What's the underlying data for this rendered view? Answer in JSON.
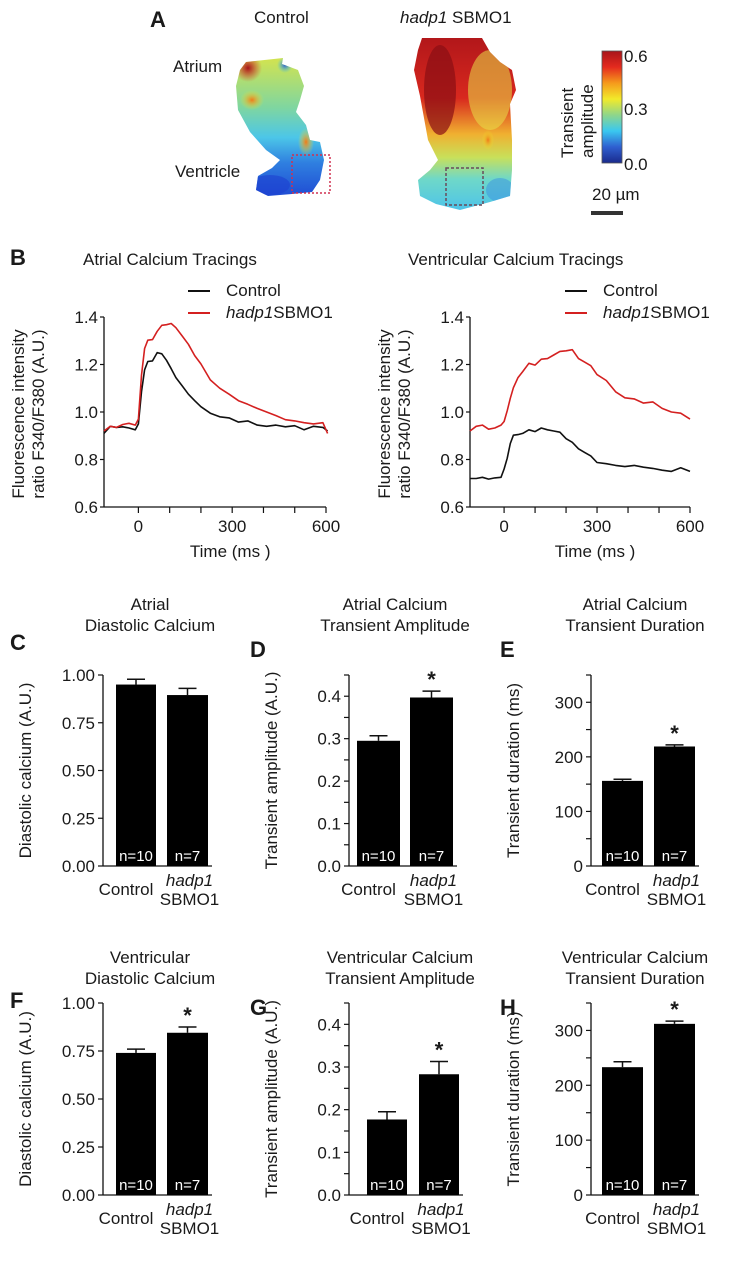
{
  "panel_a": {
    "letter": "A",
    "control_label": "Control",
    "treated_label_italic": "hadp1",
    "treated_label_rest": " SBMO1",
    "atrium_label": "Atrium",
    "ventricle_label": "Ventricle",
    "colorbar": {
      "label_line1": "Transient",
      "label_line2": "amplitude",
      "max": "0.6",
      "mid": "0.3",
      "min": "0.0",
      "colors": [
        "#1a2a8c",
        "#2f5fd0",
        "#3ac8f0",
        "#8fd68a",
        "#f2ea2a",
        "#f59a1c",
        "#e42a1e",
        "#a8141a"
      ]
    },
    "scale_bar_label": "20 µm"
  },
  "chart_data": [
    {
      "id": "B-left",
      "letter": "B",
      "type": "line",
      "title": "Atrial Calcium Tracings",
      "xlabel": "Time (ms )",
      "ylabel_line1": "Fluorescence intensity",
      "ylabel_line2": "ratio F340/F380 (A.U.)",
      "xlim": [
        -110,
        600
      ],
      "ylim": [
        0.6,
        1.4
      ],
      "xticks": [
        0,
        100,
        200,
        300,
        400,
        500,
        600
      ],
      "xticklabels": [
        "0",
        "",
        "",
        "300",
        "",
        "",
        "600"
      ],
      "yticks": [
        0.6,
        0.8,
        1.0,
        1.2,
        1.4
      ],
      "yticklabels": [
        "0.6",
        "0.8",
        "1.0",
        "1.2",
        "1.4"
      ],
      "legend": "top-right",
      "series": [
        {
          "name": "Control",
          "color": "#111111",
          "x": [
            -110,
            -90,
            -70,
            -50,
            -30,
            -10,
            0,
            10,
            20,
            30,
            45,
            60,
            75,
            90,
            105,
            120,
            140,
            160,
            180,
            200,
            230,
            260,
            290,
            320,
            350,
            380,
            410,
            440,
            470,
            500,
            530,
            560,
            590,
            605
          ],
          "y": [
            0.91,
            0.94,
            0.93,
            0.94,
            0.93,
            0.93,
            0.95,
            1.08,
            1.18,
            1.21,
            1.22,
            1.25,
            1.24,
            1.22,
            1.18,
            1.15,
            1.11,
            1.07,
            1.05,
            1.02,
            1.0,
            0.98,
            0.97,
            0.96,
            0.96,
            0.95,
            0.94,
            0.94,
            0.94,
            0.94,
            0.93,
            0.94,
            0.93,
            0.92
          ]
        },
        {
          "name": "hadp1SBMO1",
          "color": "#d42020",
          "x": [
            -110,
            -90,
            -70,
            -50,
            -30,
            -10,
            0,
            10,
            20,
            30,
            45,
            60,
            75,
            90,
            105,
            120,
            140,
            160,
            180,
            200,
            230,
            260,
            290,
            320,
            350,
            380,
            410,
            440,
            470,
            500,
            530,
            560,
            590,
            605
          ],
          "y": [
            0.92,
            0.94,
            0.93,
            0.95,
            0.95,
            0.95,
            0.97,
            1.15,
            1.27,
            1.3,
            1.31,
            1.34,
            1.36,
            1.37,
            1.37,
            1.36,
            1.32,
            1.28,
            1.24,
            1.2,
            1.14,
            1.1,
            1.07,
            1.05,
            1.03,
            1.02,
            1.0,
            0.98,
            0.97,
            0.96,
            0.96,
            0.95,
            0.95,
            0.91
          ]
        }
      ]
    },
    {
      "id": "B-right",
      "type": "line",
      "title": "Ventricular Calcium Tracings",
      "xlabel": "Time (ms )",
      "ylabel_line1": "Fluorescence intensity",
      "ylabel_line2": "ratio F340/F380 (A.U.)",
      "xlim": [
        -110,
        600
      ],
      "ylim": [
        0.6,
        1.4
      ],
      "xticks": [
        0,
        100,
        200,
        300,
        400,
        500,
        600
      ],
      "xticklabels": [
        "0",
        "",
        "",
        "300",
        "",
        "",
        "600"
      ],
      "yticks": [
        0.6,
        0.8,
        1.0,
        1.2,
        1.4
      ],
      "yticklabels": [
        "0.6",
        "0.8",
        "1.0",
        "1.2",
        "1.4"
      ],
      "legend": "top-right",
      "series": [
        {
          "name": "Control",
          "color": "#111111",
          "x": [
            -110,
            -90,
            -70,
            -50,
            -30,
            -10,
            0,
            10,
            20,
            30,
            45,
            60,
            80,
            100,
            120,
            140,
            160,
            180,
            200,
            220,
            240,
            260,
            280,
            300,
            330,
            360,
            390,
            420,
            450,
            480,
            510,
            540,
            570,
            600
          ],
          "y": [
            0.72,
            0.72,
            0.72,
            0.72,
            0.72,
            0.73,
            0.76,
            0.8,
            0.87,
            0.9,
            0.91,
            0.91,
            0.92,
            0.92,
            0.93,
            0.93,
            0.92,
            0.91,
            0.89,
            0.87,
            0.85,
            0.83,
            0.81,
            0.79,
            0.78,
            0.78,
            0.77,
            0.77,
            0.77,
            0.76,
            0.76,
            0.75,
            0.76,
            0.75
          ]
        },
        {
          "name": "hadp1SBMO1",
          "color": "#d42020",
          "x": [
            -110,
            -90,
            -70,
            -50,
            -30,
            -10,
            0,
            10,
            20,
            30,
            45,
            60,
            80,
            100,
            120,
            140,
            160,
            180,
            200,
            220,
            240,
            260,
            280,
            300,
            330,
            360,
            390,
            420,
            450,
            480,
            510,
            540,
            570,
            600
          ],
          "y": [
            0.92,
            0.94,
            0.94,
            0.93,
            0.93,
            0.95,
            0.96,
            1.0,
            1.06,
            1.1,
            1.15,
            1.17,
            1.2,
            1.2,
            1.22,
            1.23,
            1.24,
            1.25,
            1.26,
            1.26,
            1.23,
            1.21,
            1.19,
            1.16,
            1.13,
            1.09,
            1.06,
            1.05,
            1.04,
            1.04,
            1.02,
            1.0,
            0.99,
            0.97
          ]
        }
      ]
    },
    {
      "id": "C",
      "letter": "C",
      "type": "bar",
      "title_line1": "Atrial",
      "title_line2": "Diastolic Calcium",
      "ylabel": "Diastolic calcium (A.U.)",
      "categories": [
        "Control",
        "hadp1 SBMO1"
      ],
      "values": [
        0.95,
        0.895
      ],
      "errors": [
        0.028,
        0.035
      ],
      "n_labels": [
        "n=10",
        "n=7"
      ],
      "significance": [
        "",
        ""
      ],
      "ylim": [
        0,
        1.0
      ],
      "yticks": [
        0,
        0.25,
        0.5,
        0.75,
        1.0
      ],
      "yticklabels": [
        "0.00",
        "0.25",
        "0.50",
        "0.75",
        "1.00"
      ],
      "minor_ticks": []
    },
    {
      "id": "D",
      "letter": "D",
      "type": "bar",
      "title_line1": "Atrial Calcium",
      "title_line2": "Transient Amplitude",
      "ylabel": "Transient amplitude (A.U.)",
      "categories": [
        "Control",
        "hadp1 SBMO1"
      ],
      "values": [
        0.295,
        0.397
      ],
      "errors": [
        0.012,
        0.015
      ],
      "n_labels": [
        "n=10",
        "n=7"
      ],
      "significance": [
        "",
        "*"
      ],
      "ylim": [
        0,
        0.45
      ],
      "yticks": [
        0,
        0.1,
        0.2,
        0.3,
        0.4
      ],
      "yticklabels": [
        "0.0",
        "0.1",
        "0.2",
        "0.3",
        "0.4"
      ],
      "minor_ticks": [
        0.05,
        0.15,
        0.25,
        0.35,
        0.45
      ]
    },
    {
      "id": "E",
      "letter": "E",
      "type": "bar",
      "title_line1": "Atrial Calcium",
      "title_line2": "Transient Duration",
      "ylabel": "Transient duration (ms)",
      "categories": [
        "Control",
        "hadp1 SBMO1"
      ],
      "values": [
        156,
        219
      ],
      "errors": [
        3,
        3
      ],
      "n_labels": [
        "n=10",
        "n=7"
      ],
      "significance": [
        "",
        "*"
      ],
      "ylim": [
        0,
        350
      ],
      "yticks": [
        0,
        100,
        200,
        300
      ],
      "yticklabels": [
        "0",
        "100",
        "200",
        "300"
      ],
      "minor_ticks": [
        50,
        150,
        250,
        350
      ]
    },
    {
      "id": "F",
      "letter": "F",
      "type": "bar",
      "title_line1": "Ventricular",
      "title_line2": "Diastolic Calcium",
      "ylabel": "Diastolic calcium (A.U.)",
      "categories": [
        "Control",
        "hadp1 SBMO1"
      ],
      "values": [
        0.74,
        0.845
      ],
      "errors": [
        0.02,
        0.03
      ],
      "n_labels": [
        "n=10",
        "n=7"
      ],
      "significance": [
        "",
        "*"
      ],
      "ylim": [
        0,
        1.0
      ],
      "yticks": [
        0,
        0.25,
        0.5,
        0.75,
        1.0
      ],
      "yticklabels": [
        "0.00",
        "0.25",
        "0.50",
        "0.75",
        "1.00"
      ],
      "minor_ticks": []
    },
    {
      "id": "G",
      "letter": "G",
      "type": "bar",
      "title_line1": "Ventricular Calcium",
      "title_line2": "Transient Amplitude",
      "ylabel": "Transient amplitude (A.U.)",
      "categories": [
        "Control",
        "hadp1 SBMO1"
      ],
      "values": [
        0.177,
        0.283
      ],
      "errors": [
        0.018,
        0.03
      ],
      "n_labels": [
        "n=10",
        "n=7"
      ],
      "significance": [
        "",
        "*"
      ],
      "ylim": [
        0,
        0.45
      ],
      "yticks": [
        0,
        0.1,
        0.2,
        0.3,
        0.4
      ],
      "yticklabels": [
        "0.0",
        "0.1",
        "0.2",
        "0.3",
        "0.4"
      ],
      "minor_ticks": [
        0.05,
        0.15,
        0.25,
        0.35,
        0.45
      ]
    },
    {
      "id": "H",
      "letter": "H",
      "type": "bar",
      "title_line1": "Ventricular Calcium",
      "title_line2": "Transient Duration",
      "ylabel": "Transient duration (ms)",
      "categories": [
        "Control",
        "hadp1 SBMO1"
      ],
      "values": [
        233,
        312
      ],
      "errors": [
        10,
        5
      ],
      "n_labels": [
        "n=10",
        "n=7"
      ],
      "significance": [
        "",
        "*"
      ],
      "ylim": [
        0,
        350
      ],
      "yticks": [
        0,
        100,
        200,
        300
      ],
      "yticklabels": [
        "0",
        "100",
        "200",
        "300"
      ],
      "minor_ticks": [
        50,
        150,
        250,
        350
      ]
    }
  ],
  "category_labels": {
    "control": "Control",
    "treated_italic": "hadp1",
    "treated_rest": "SBMO1"
  }
}
